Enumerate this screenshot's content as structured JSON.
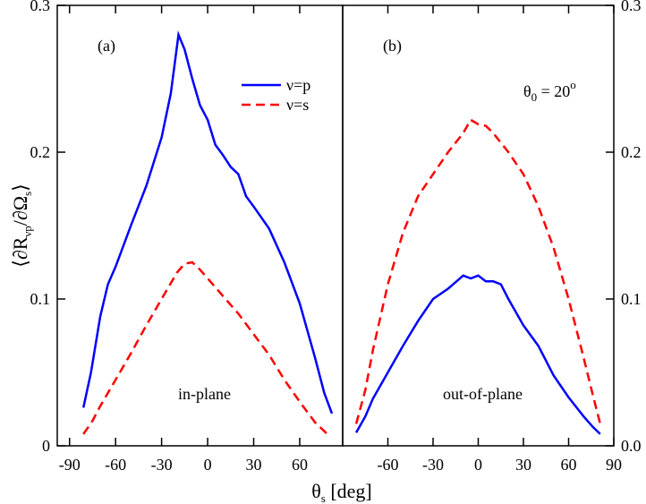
{
  "chart_data": [
    {
      "type": "line",
      "panel_label": "(a)",
      "annotation": "in-plane",
      "xlabel": [
        "θ",
        "s",
        " [deg]"
      ],
      "ylabel": [
        "⟨∂R",
        "νp",
        "/∂Ω",
        "s",
        "⟩"
      ],
      "xlim": [
        -98,
        88
      ],
      "ylim": [
        0,
        0.3
      ],
      "xticks": [
        -90,
        -60,
        -30,
        0,
        30,
        60
      ],
      "yticks": [
        0,
        0.1,
        0.2,
        0.3
      ],
      "legend": "upper right",
      "series": [
        {
          "name": "ν=p",
          "color": "#0000ff",
          "dash": "solid",
          "x": [
            -81,
            -76,
            -70,
            -65,
            -60,
            -50,
            -40,
            -30,
            -24,
            -19,
            -15,
            -10,
            -5,
            0,
            5,
            10,
            15,
            20,
            25,
            30,
            40,
            50,
            60,
            70,
            76,
            81
          ],
          "values": [
            0.026,
            0.05,
            0.088,
            0.11,
            0.122,
            0.15,
            0.177,
            0.21,
            0.24,
            0.28,
            0.27,
            0.25,
            0.232,
            0.222,
            0.205,
            0.198,
            0.19,
            0.185,
            0.17,
            0.163,
            0.148,
            0.125,
            0.097,
            0.06,
            0.036,
            0.022
          ]
        },
        {
          "name": "ν=s",
          "color": "#ff0000",
          "dash": "dashed",
          "x": [
            -81,
            -75,
            -70,
            -60,
            -50,
            -40,
            -30,
            -20,
            -15,
            -10,
            -5,
            0,
            10,
            20,
            30,
            40,
            50,
            60,
            70,
            80
          ],
          "values": [
            0.008,
            0.017,
            0.027,
            0.045,
            0.063,
            0.082,
            0.1,
            0.118,
            0.124,
            0.125,
            0.12,
            0.114,
            0.102,
            0.09,
            0.076,
            0.062,
            0.045,
            0.03,
            0.016,
            0.006
          ]
        }
      ]
    },
    {
      "type": "line",
      "panel_label": "(b)",
      "annotation": "out-of-plane",
      "note": [
        "θ",
        "0",
        " = 20",
        "o"
      ],
      "xlim": [
        -90,
        90
      ],
      "ylim": [
        0,
        0.3
      ],
      "y2lim": [
        0,
        0.3
      ],
      "xticks": [
        -60,
        -30,
        0,
        30,
        60,
        90
      ],
      "y2ticks": [
        {
          "value": 0,
          "label": "0.0"
        },
        0.1,
        0.2,
        0.3
      ],
      "series": [
        {
          "color": "#ff0000",
          "dash": "dashed",
          "x": [
            -81,
            -75,
            -70,
            -60,
            -50,
            -40,
            -30,
            -20,
            -10,
            -5,
            0,
            5,
            10,
            20,
            30,
            40,
            50,
            60,
            70,
            76,
            81
          ],
          "values": [
            0.015,
            0.038,
            0.065,
            0.11,
            0.145,
            0.17,
            0.185,
            0.2,
            0.213,
            0.222,
            0.219,
            0.218,
            0.213,
            0.2,
            0.185,
            0.163,
            0.135,
            0.1,
            0.06,
            0.035,
            0.015
          ]
        },
        {
          "color": "#0000ff",
          "dash": "solid",
          "x": [
            -81,
            -75,
            -70,
            -60,
            -50,
            -40,
            -30,
            -20,
            -10,
            -5,
            0,
            5,
            10,
            15,
            20,
            30,
            40,
            50,
            60,
            70,
            76,
            81
          ],
          "values": [
            0.009,
            0.02,
            0.032,
            0.05,
            0.068,
            0.085,
            0.1,
            0.107,
            0.116,
            0.114,
            0.116,
            0.112,
            0.112,
            0.11,
            0.1,
            0.082,
            0.068,
            0.048,
            0.033,
            0.02,
            0.013,
            0.008
          ]
        }
      ]
    }
  ]
}
